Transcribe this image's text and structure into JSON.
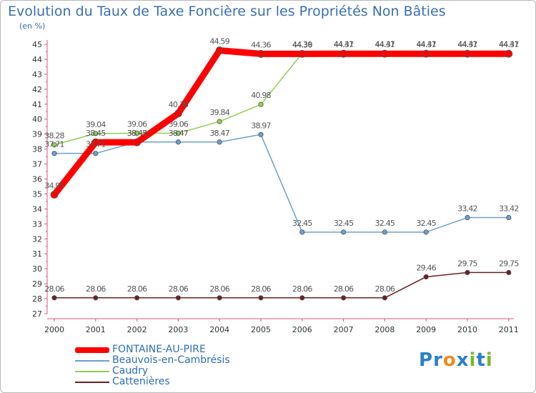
{
  "chart_data": {
    "type": "line",
    "title": "Evolution du Taux de Taxe Foncière sur les Propriétés Non Bâties",
    "subtitle": "(en %)",
    "xlabel": "",
    "ylabel": "",
    "ylim": [
      27,
      45
    ],
    "yticks": [
      27,
      28,
      29,
      30,
      31,
      32,
      33,
      34,
      35,
      36,
      37,
      38,
      39,
      40,
      41,
      42,
      43,
      44,
      45
    ],
    "grid": false,
    "legend_position": "bottom-left",
    "categories": [
      "2000",
      "2001",
      "2002",
      "2003",
      "2004",
      "2005",
      "2006",
      "2007",
      "2008",
      "2009",
      "2010",
      "2011"
    ],
    "series": [
      {
        "name": "FONTAINE-AU-PIRE",
        "color": "#ff0000",
        "values": [
          34.95,
          38.45,
          38.45,
          40.38,
          44.59,
          44.36,
          44.36,
          44.37,
          44.37,
          44.37,
          44.37,
          44.37
        ],
        "labels": [
          "34.95",
          "38.45",
          "38.45",
          "40.38",
          "44.59",
          "44.36",
          "44.36",
          "44.37",
          "44.37",
          "44.37",
          "44.37",
          "44.37"
        ]
      },
      {
        "name": "Beauvois-en-Cambrésis",
        "color": "#6aa0d0",
        "values": [
          37.71,
          37.71,
          38.47,
          38.47,
          38.47,
          38.97,
          32.45,
          32.45,
          32.45,
          32.45,
          33.42,
          33.42
        ],
        "labels": [
          "37.71",
          "37.71",
          "38.47",
          "38.47",
          "38.47",
          "38.97",
          "32.45",
          "32.45",
          "32.45",
          "32.45",
          "33.42",
          "33.42"
        ]
      },
      {
        "name": "Caudry",
        "color": "#90d050",
        "values": [
          38.28,
          39.04,
          39.06,
          39.06,
          39.84,
          40.98,
          44.39,
          44.41,
          44.41,
          44.41,
          44.41,
          44.41
        ],
        "labels": [
          "38.28",
          "39.04",
          "39.06",
          "39.06",
          "39.84",
          "40.98",
          "44.39",
          "44.41",
          "44.41",
          "44.41",
          "44.41",
          "44.41"
        ]
      },
      {
        "name": "Cattenières",
        "color": "#6b2020",
        "values": [
          28.06,
          28.06,
          28.06,
          28.06,
          28.06,
          28.06,
          28.06,
          28.06,
          28.06,
          29.46,
          29.75,
          29.75
        ],
        "labels": [
          "28.06",
          "28.06",
          "28.06",
          "28.06",
          "28.06",
          "28.06",
          "28.06",
          "28.06",
          "28.06",
          "29.46",
          "29.75",
          "29.75"
        ]
      }
    ]
  },
  "logo": {
    "text": "Proxiti",
    "letters": [
      "P",
      "r",
      "o",
      "x",
      "i",
      "t",
      "i"
    ],
    "colors": [
      "#2a7fc8",
      "#2a7fc8",
      "#f08a1c",
      "#2a7fc8",
      "#7ab82a",
      "#2a7fc8",
      "#7ab82a"
    ]
  }
}
